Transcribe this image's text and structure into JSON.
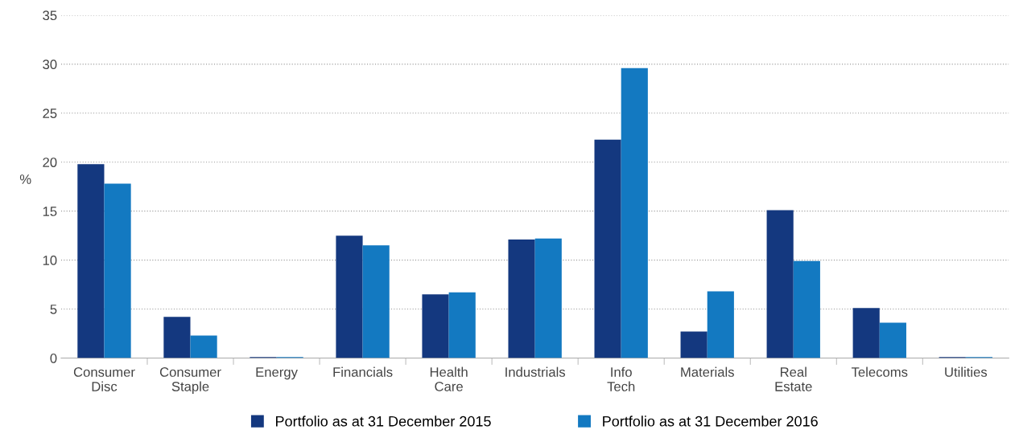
{
  "chart_data": {
    "type": "bar",
    "ylabel": "%",
    "categories": [
      "Consumer\nDisc",
      "Consumer\nStaple",
      "Energy",
      "Financials",
      "Health\nCare",
      "Industrials",
      "Info\nTech",
      "Materials",
      "Real\nEstate",
      "Telecoms",
      "Utilities"
    ],
    "series": [
      {
        "name": "Portfolio as at 31 December 2015",
        "color": "#14387f",
        "values": [
          19.8,
          4.2,
          0.1,
          12.5,
          6.5,
          12.1,
          22.3,
          2.7,
          15.1,
          5.1,
          0.1
        ]
      },
      {
        "name": "Portfolio as at 31 December 2016",
        "color": "#1379c1",
        "values": [
          17.8,
          2.3,
          0.1,
          11.5,
          6.7,
          12.2,
          29.6,
          6.8,
          9.9,
          3.6,
          0.1
        ]
      }
    ],
    "ylim": [
      0,
      35
    ],
    "yticks": [
      0,
      5,
      10,
      15,
      20,
      25,
      30,
      35
    ],
    "grid": "y",
    "legend": "bottom"
  }
}
